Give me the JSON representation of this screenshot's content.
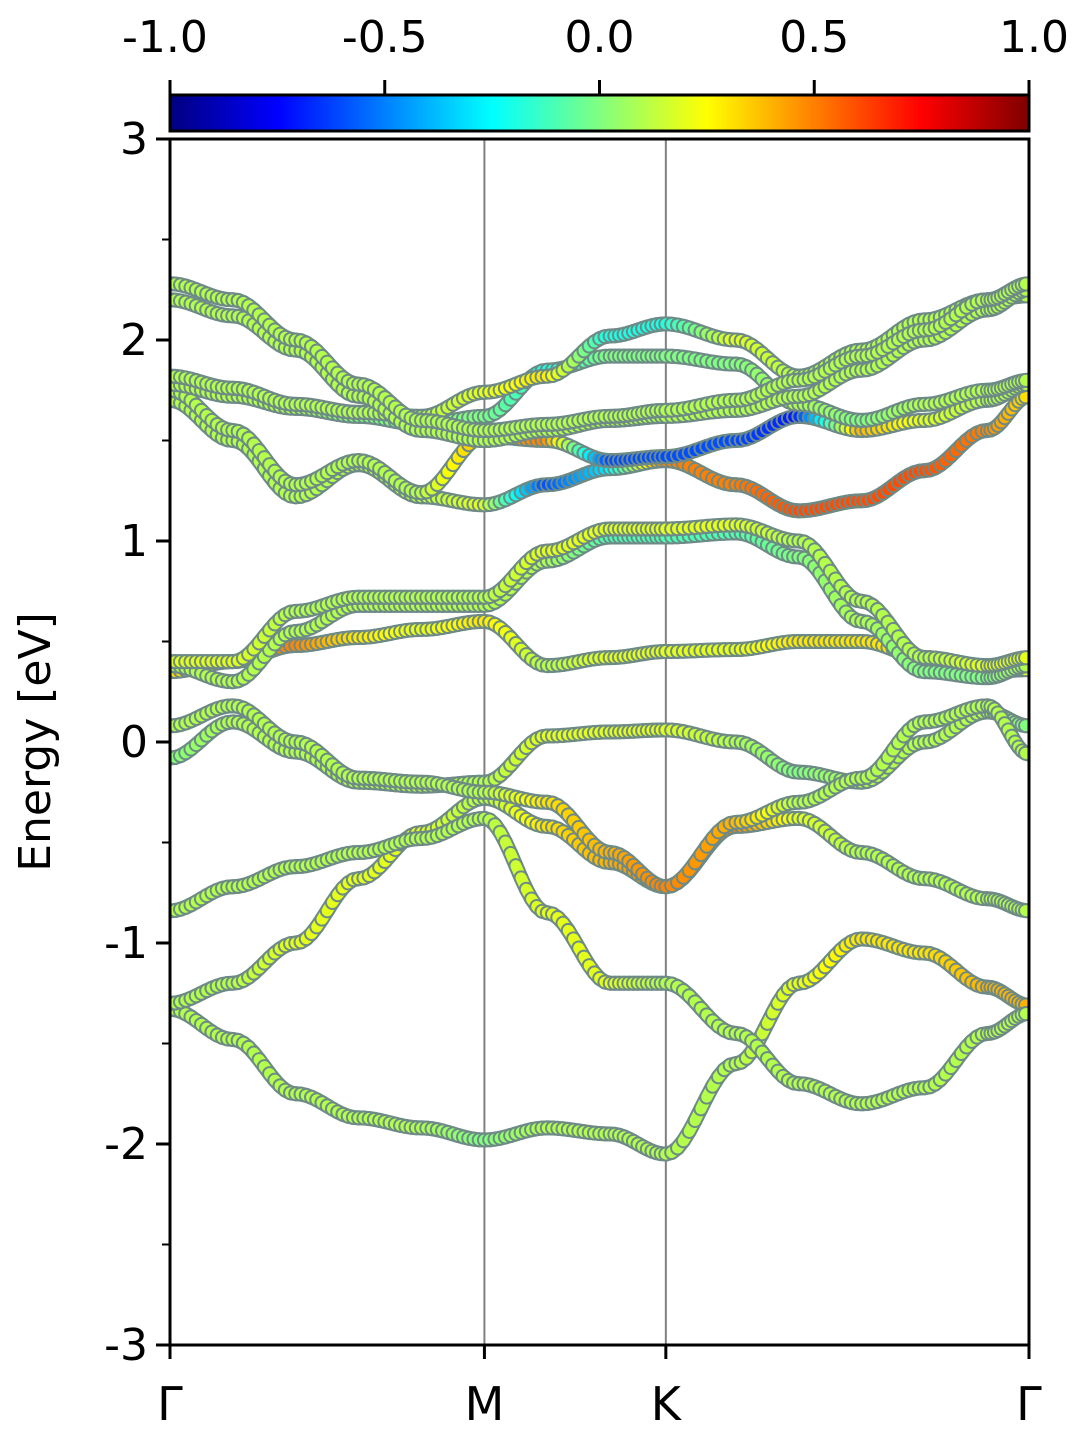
{
  "chart_data": {
    "type": "line",
    "ylabel": "Energy [eV]",
    "ylim": [
      -3,
      3
    ],
    "xlim": [
      0,
      2.732
    ],
    "y_ticks": [
      "-3",
      "-2",
      "-1",
      "0",
      "1",
      "2",
      "3"
    ],
    "x_ticks": [
      {
        "label": "Γ",
        "x": 0.0
      },
      {
        "label": "M",
        "x": 1.0
      },
      {
        "label": "K",
        "x": 1.577
      },
      {
        "label": "Γ",
        "x": 2.732
      }
    ],
    "colorbar": {
      "range": [
        -1.0,
        1.0
      ],
      "ticks": [
        "-1.0",
        "-0.5",
        "0.0",
        "0.5",
        "1.0"
      ],
      "colormap": "jet"
    },
    "series": [
      {
        "x": [
          0,
          0.2,
          0.4,
          0.6,
          0.8,
          1.0,
          1.2,
          1.4,
          1.577,
          1.8,
          2.0,
          2.2,
          2.4,
          2.6,
          2.732
        ],
        "values": [
          -1.33,
          -1.48,
          -1.75,
          -1.87,
          -1.92,
          -1.98,
          -1.92,
          -1.95,
          -2.05,
          -1.6,
          -1.2,
          -0.98,
          -1.05,
          -1.22,
          -1.31
        ],
        "projection": [
          0.1,
          0.1,
          0.1,
          0.1,
          0.1,
          0.0,
          0.1,
          0.1,
          0.1,
          0.1,
          0.2,
          0.3,
          0.3,
          0.4,
          0.4
        ]
      },
      {
        "x": [
          0,
          0.2,
          0.4,
          0.6,
          0.8,
          1.0,
          1.2,
          1.4,
          1.577,
          1.8,
          2.0,
          2.2,
          2.4,
          2.6,
          2.732
        ],
        "values": [
          -1.3,
          -1.2,
          -1.0,
          -0.68,
          -0.45,
          -0.28,
          -0.42,
          -0.6,
          -0.72,
          -0.42,
          -0.38,
          -0.55,
          -0.68,
          -0.78,
          -0.84
        ],
        "projection": [
          0.1,
          0.1,
          0.2,
          0.2,
          0.2,
          0.1,
          0.3,
          0.4,
          0.5,
          0.5,
          0.2,
          0.1,
          0.1,
          0.1,
          0.1
        ]
      },
      {
        "x": [
          0,
          0.2,
          0.4,
          0.6,
          0.8,
          1.0,
          1.2,
          1.4,
          1.577,
          1.8,
          2.0,
          2.2,
          2.4,
          2.6,
          2.732
        ],
        "values": [
          -0.84,
          -0.72,
          -0.62,
          -0.55,
          -0.48,
          -0.38,
          -0.85,
          -1.2,
          -1.2,
          -1.45,
          -1.7,
          -1.8,
          -1.72,
          -1.45,
          -1.35
        ],
        "projection": [
          0.1,
          0.1,
          0.1,
          0.1,
          0.1,
          0.1,
          0.2,
          0.2,
          0.1,
          0.1,
          0.1,
          0.1,
          0.1,
          0.1,
          0.1
        ]
      },
      {
        "x": [
          0,
          0.2,
          0.4,
          0.6,
          0.8,
          1.0,
          1.2,
          1.4,
          1.577,
          1.8,
          2.0,
          2.2,
          2.4,
          2.6,
          2.732
        ],
        "values": [
          -0.08,
          0.1,
          -0.05,
          -0.2,
          -0.22,
          -0.2,
          0.03,
          0.05,
          0.06,
          0.0,
          -0.15,
          -0.2,
          0.0,
          0.15,
          0.08
        ],
        "projection": [
          0.0,
          0.1,
          0.1,
          0.1,
          0.1,
          0.1,
          0.2,
          0.2,
          0.2,
          0.1,
          0.0,
          0.1,
          0.1,
          0.1,
          0.0
        ]
      },
      {
        "x": [
          0,
          0.2,
          0.4,
          0.6,
          0.8,
          1.0,
          1.2,
          1.4,
          1.577,
          1.8,
          2.0,
          2.2,
          2.4,
          2.6,
          2.732
        ],
        "values": [
          0.08,
          0.18,
          0.0,
          -0.18,
          -0.2,
          -0.25,
          -0.3,
          -0.55,
          -0.72,
          -0.4,
          -0.3,
          -0.18,
          0.1,
          0.18,
          -0.06
        ],
        "projection": [
          0.1,
          0.1,
          0.1,
          0.1,
          0.1,
          0.1,
          0.3,
          0.4,
          0.5,
          0.4,
          0.1,
          0.1,
          0.1,
          0.1,
          0.1
        ]
      },
      {
        "x": [
          0,
          0.2,
          0.4,
          0.6,
          0.8,
          1.0,
          1.2,
          1.4,
          1.577,
          1.8,
          2.0,
          2.2,
          2.4,
          2.6,
          2.732
        ],
        "values": [
          0.35,
          0.4,
          0.48,
          0.52,
          0.56,
          0.6,
          0.38,
          0.42,
          0.45,
          0.46,
          0.5,
          0.5,
          0.42,
          0.35,
          0.36
        ],
        "projection": [
          0.3,
          0.4,
          0.5,
          0.3,
          0.2,
          0.3,
          0.1,
          0.2,
          0.2,
          0.2,
          0.3,
          0.3,
          0.3,
          0.2,
          0.2
        ]
      },
      {
        "x": [
          0,
          0.2,
          0.4,
          0.6,
          0.8,
          1.0,
          1.2,
          1.4,
          1.577,
          1.8,
          2.0,
          2.2,
          2.4,
          2.6,
          2.732
        ],
        "values": [
          0.38,
          0.3,
          0.55,
          0.68,
          0.68,
          0.68,
          0.9,
          1.02,
          1.02,
          1.04,
          0.92,
          0.6,
          0.35,
          0.32,
          0.38
        ],
        "projection": [
          0.1,
          0.1,
          0.1,
          0.1,
          0.1,
          0.1,
          0.1,
          -0.1,
          -0.1,
          -0.1,
          0.0,
          0.1,
          0.0,
          0.0,
          0.1
        ]
      },
      {
        "x": [
          0,
          0.2,
          0.4,
          0.6,
          0.8,
          1.0,
          1.2,
          1.4,
          1.577,
          1.8,
          2.0,
          2.2,
          2.4,
          2.6,
          2.732
        ],
        "values": [
          0.4,
          0.4,
          0.65,
          0.72,
          0.72,
          0.72,
          0.95,
          1.06,
          1.06,
          1.08,
          1.0,
          0.7,
          0.42,
          0.38,
          0.42
        ],
        "projection": [
          0.2,
          0.2,
          0.1,
          0.1,
          0.1,
          0.1,
          0.2,
          0.2,
          0.2,
          0.2,
          0.1,
          0.1,
          0.1,
          0.2,
          0.2
        ]
      },
      {
        "x": [
          0,
          0.2,
          0.4,
          0.6,
          0.8,
          1.0,
          1.2,
          1.4,
          1.577,
          1.8,
          2.0,
          2.2,
          2.4,
          2.6,
          2.732
        ],
        "values": [
          1.7,
          1.5,
          1.22,
          1.38,
          1.22,
          1.18,
          1.28,
          1.36,
          1.4,
          1.28,
          1.15,
          1.2,
          1.35,
          1.55,
          1.72
        ],
        "projection": [
          0.1,
          0.1,
          0.1,
          0.1,
          0.1,
          0.2,
          -0.6,
          -0.3,
          0.5,
          0.5,
          0.6,
          0.6,
          0.6,
          0.5,
          0.3
        ]
      },
      {
        "x": [
          0,
          0.2,
          0.4,
          0.6,
          0.8,
          1.0,
          1.2,
          1.4,
          1.577,
          1.8,
          2.0,
          2.2,
          2.4,
          2.6,
          2.732
        ],
        "values": [
          1.75,
          1.55,
          1.28,
          1.4,
          1.24,
          1.52,
          1.5,
          1.4,
          1.42,
          1.5,
          1.62,
          1.55,
          1.6,
          1.7,
          1.78
        ],
        "projection": [
          0.1,
          0.1,
          0.1,
          0.1,
          0.1,
          0.4,
          0.5,
          -0.6,
          -0.6,
          -0.6,
          -0.7,
          0.4,
          0.2,
          0.1,
          0.1
        ]
      },
      {
        "x": [
          0,
          0.2,
          0.4,
          0.6,
          0.8,
          1.0,
          1.2,
          1.4,
          1.577,
          1.8,
          2.0,
          2.2,
          2.4,
          2.6,
          2.732
        ],
        "values": [
          1.78,
          1.72,
          1.66,
          1.62,
          1.58,
          1.62,
          1.85,
          1.92,
          1.92,
          1.88,
          1.68,
          1.6,
          1.68,
          1.75,
          1.8
        ],
        "projection": [
          0.1,
          0.1,
          0.1,
          0.0,
          0.0,
          0.0,
          -0.2,
          0.0,
          0.0,
          0.0,
          0.1,
          0.0,
          0.1,
          0.1,
          0.1
        ]
      },
      {
        "x": [
          0,
          0.2,
          0.4,
          0.6,
          0.8,
          1.0,
          1.2,
          1.4,
          1.577,
          1.8,
          2.0,
          2.2,
          2.4,
          2.6,
          2.732
        ],
        "values": [
          1.82,
          1.76,
          1.68,
          1.64,
          1.62,
          1.74,
          1.82,
          2.02,
          2.08,
          2.0,
          1.82,
          1.95,
          2.1,
          2.2,
          2.22
        ],
        "projection": [
          0.1,
          0.1,
          0.1,
          0.1,
          0.1,
          0.2,
          0.3,
          -0.2,
          -0.2,
          0.2,
          0.1,
          0.1,
          0.1,
          0.1,
          0.1
        ]
      },
      {
        "x": [
          0,
          0.2,
          0.4,
          0.6,
          0.8,
          1.0,
          1.2,
          1.4,
          1.577,
          1.8,
          2.0,
          2.2,
          2.4,
          2.6,
          2.732
        ],
        "values": [
          2.2,
          2.12,
          1.95,
          1.72,
          1.55,
          1.5,
          1.55,
          1.6,
          1.62,
          1.65,
          1.72,
          1.85,
          2.0,
          2.15,
          2.25
        ],
        "projection": [
          0.1,
          0.1,
          0.1,
          0.1,
          0.1,
          0.1,
          0.1,
          0.1,
          0.1,
          0.1,
          0.1,
          0.1,
          0.1,
          0.1,
          0.1
        ]
      },
      {
        "x": [
          0,
          0.2,
          0.4,
          0.6,
          0.8,
          1.0,
          1.2,
          1.4,
          1.577,
          1.8,
          2.0,
          2.2,
          2.4,
          2.6,
          2.732
        ],
        "values": [
          2.28,
          2.2,
          2.0,
          1.78,
          1.6,
          1.55,
          1.58,
          1.62,
          1.65,
          1.7,
          1.8,
          1.92,
          2.05,
          2.2,
          2.28
        ],
        "projection": [
          0.1,
          0.1,
          0.1,
          0.1,
          0.1,
          0.1,
          0.1,
          0.1,
          0.1,
          0.1,
          0.1,
          0.1,
          0.1,
          0.1,
          0.1
        ]
      }
    ]
  }
}
